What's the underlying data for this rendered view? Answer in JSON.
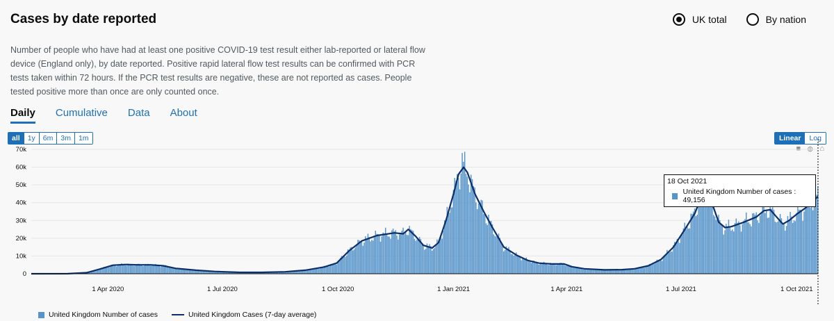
{
  "header": {
    "title": "Cases by date reported",
    "description": "Number of people who have had at least one positive COVID-19 test result either lab-reported or lateral flow device (England only), by date reported. Positive rapid lateral flow test results can be confirmed with PCR tests taken within 72 hours. If the PCR test results are negative, these are not reported as cases. People tested positive more than once are only counted once."
  },
  "radios": [
    {
      "label": "UK total",
      "selected": true
    },
    {
      "label": "By nation",
      "selected": false
    }
  ],
  "tabs": [
    {
      "label": "Daily",
      "active": true
    },
    {
      "label": "Cumulative",
      "active": false
    },
    {
      "label": "Data",
      "active": false
    },
    {
      "label": "About",
      "active": false
    }
  ],
  "range_buttons": [
    {
      "label": "all",
      "active": true
    },
    {
      "label": "1y",
      "active": false
    },
    {
      "label": "6m",
      "active": false
    },
    {
      "label": "3m",
      "active": false
    },
    {
      "label": "1m",
      "active": false
    }
  ],
  "scale_buttons": [
    {
      "label": "Linear",
      "active": true
    },
    {
      "label": "Log",
      "active": false
    }
  ],
  "toolbar": {
    "icons": [
      "camera-icon",
      "zoom-icon",
      "home-icon"
    ]
  },
  "tooltip": {
    "date": "18 Oct 2021",
    "text": "United Kingdom Number of cases : 49,156"
  },
  "legend": {
    "bars": "United Kingdom Number of cases",
    "line": "United Kingdom Cases (7-day average)"
  },
  "colors": {
    "bar": "#5694ca",
    "line": "#0b2f6a",
    "accent": "#1d70b8"
  },
  "chart_data": {
    "type": "bar",
    "x_start": "2020-01-31",
    "x_end": "2021-10-18",
    "ylim": [
      0,
      70000
    ],
    "yticks": [
      0,
      10000,
      20000,
      30000,
      40000,
      50000,
      60000,
      70000
    ],
    "ytick_labels": [
      "0",
      "10k",
      "20k",
      "30k",
      "40k",
      "50k",
      "60k",
      "70k"
    ],
    "xticks": [
      "2020-04-01",
      "2020-07-01",
      "2020-10-01",
      "2021-01-01",
      "2021-04-01",
      "2021-07-01",
      "2021-10-01"
    ],
    "xtick_labels": [
      "1 Apr 2020",
      "1 Jul 2020",
      "1 Oct 2020",
      "1 Jan 2021",
      "1 Apr 2021",
      "1 Jul 2021",
      "1 Oct 2021"
    ],
    "series": [
      {
        "name": "United Kingdom Cases (7-day average)",
        "kind": "line",
        "points": [
          [
            "2020-01-31",
            0
          ],
          [
            "2020-02-29",
            30
          ],
          [
            "2020-03-15",
            600
          ],
          [
            "2020-03-25",
            2500
          ],
          [
            "2020-04-05",
            4800
          ],
          [
            "2020-04-15",
            5200
          ],
          [
            "2020-04-25",
            5000
          ],
          [
            "2020-05-05",
            5000
          ],
          [
            "2020-05-15",
            4500
          ],
          [
            "2020-05-25",
            3000
          ],
          [
            "2020-06-10",
            2000
          ],
          [
            "2020-06-25",
            1300
          ],
          [
            "2020-07-15",
            800
          ],
          [
            "2020-08-01",
            800
          ],
          [
            "2020-08-20",
            1100
          ],
          [
            "2020-09-05",
            2000
          ],
          [
            "2020-09-20",
            3800
          ],
          [
            "2020-09-30",
            6000
          ],
          [
            "2020-10-10",
            13000
          ],
          [
            "2020-10-20",
            18500
          ],
          [
            "2020-11-01",
            21500
          ],
          [
            "2020-11-15",
            23000
          ],
          [
            "2020-11-22",
            22500
          ],
          [
            "2020-11-26",
            25000
          ],
          [
            "2020-12-02",
            21000
          ],
          [
            "2020-12-08",
            16000
          ],
          [
            "2020-12-15",
            14500
          ],
          [
            "2020-12-20",
            17500
          ],
          [
            "2020-12-26",
            30000
          ],
          [
            "2021-01-01",
            45000
          ],
          [
            "2021-01-05",
            56000
          ],
          [
            "2021-01-09",
            60000
          ],
          [
            "2021-01-12",
            57000
          ],
          [
            "2021-01-18",
            45000
          ],
          [
            "2021-01-25",
            35000
          ],
          [
            "2021-02-01",
            26000
          ],
          [
            "2021-02-10",
            15000
          ],
          [
            "2021-02-20",
            10500
          ],
          [
            "2021-03-01",
            7500
          ],
          [
            "2021-03-10",
            6000
          ],
          [
            "2021-03-20",
            5500
          ],
          [
            "2021-03-30",
            5500
          ],
          [
            "2021-04-05",
            4000
          ],
          [
            "2021-04-15",
            2800
          ],
          [
            "2021-05-01",
            2200
          ],
          [
            "2021-05-15",
            2300
          ],
          [
            "2021-05-25",
            2800
          ],
          [
            "2021-06-05",
            4500
          ],
          [
            "2021-06-15",
            8000
          ],
          [
            "2021-06-25",
            15000
          ],
          [
            "2021-07-05",
            26000
          ],
          [
            "2021-07-12",
            34000
          ],
          [
            "2021-07-17",
            43000
          ],
          [
            "2021-07-21",
            46500
          ],
          [
            "2021-07-25",
            41000
          ],
          [
            "2021-07-31",
            29000
          ],
          [
            "2021-08-05",
            26000
          ],
          [
            "2021-08-10",
            26500
          ],
          [
            "2021-08-20",
            29000
          ],
          [
            "2021-08-30",
            32000
          ],
          [
            "2021-09-05",
            35500
          ],
          [
            "2021-09-10",
            36000
          ],
          [
            "2021-09-15",
            32000
          ],
          [
            "2021-09-20",
            28000
          ],
          [
            "2021-09-25",
            30000
          ],
          [
            "2021-10-01",
            33500
          ],
          [
            "2021-10-08",
            37000
          ],
          [
            "2021-10-13",
            40500
          ],
          [
            "2021-10-18",
            43500
          ]
        ]
      },
      {
        "name": "United Kingdom Number of cases",
        "kind": "bar",
        "note": "daily values vary around the 7-day average with weekday pattern; spikes include ~68,000 on 2021-01-08"
      }
    ]
  }
}
